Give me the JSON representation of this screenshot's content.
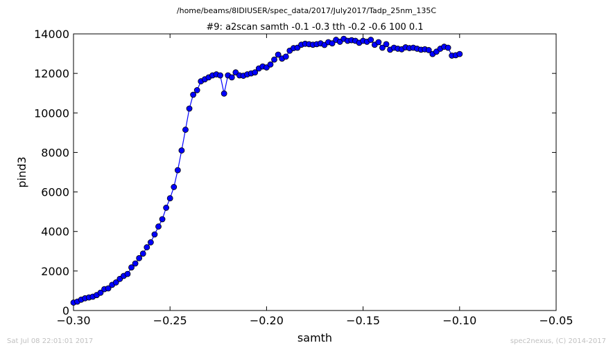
{
  "suptitle": "/home/beams/8IDIUSER/spec_data/2017/July2017/Tadp_25nm_135C",
  "footer": {
    "date": "Sat Jul 08 22:01:01 2017",
    "credit": "spec2nexus, (C) 2014-2017"
  },
  "chart_data": {
    "type": "line",
    "title": "#9: a2scan  samth -0.1 -0.3  tth -0.2 -0.6  100 0.1",
    "xlabel": "samth",
    "ylabel": "pind3",
    "xlim": [
      -0.3,
      -0.05
    ],
    "ylim": [
      0,
      14000
    ],
    "xticks": [
      -0.3,
      -0.25,
      -0.2,
      -0.15,
      -0.1,
      -0.05
    ],
    "xtick_labels": [
      "−0.30",
      "−0.25",
      "−0.20",
      "−0.15",
      "−0.10",
      "−0.05"
    ],
    "yticks": [
      0,
      2000,
      4000,
      6000,
      8000,
      10000,
      12000,
      14000
    ],
    "ytick_labels": [
      "0",
      "2000",
      "4000",
      "6000",
      "8000",
      "10000",
      "12000",
      "14000"
    ],
    "grid": false,
    "series": [
      {
        "color": "#0000ff",
        "marker": "circle",
        "x": [
          -0.3,
          -0.298,
          -0.296,
          -0.294,
          -0.292,
          -0.29,
          -0.288,
          -0.286,
          -0.284,
          -0.282,
          -0.28,
          -0.278,
          -0.276,
          -0.274,
          -0.272,
          -0.27,
          -0.268,
          -0.266,
          -0.264,
          -0.262,
          -0.26,
          -0.258,
          -0.256,
          -0.254,
          -0.252,
          -0.25,
          -0.248,
          -0.246,
          -0.244,
          -0.242,
          -0.24,
          -0.238,
          -0.236,
          -0.234,
          -0.232,
          -0.23,
          -0.228,
          -0.226,
          -0.224,
          -0.222,
          -0.22,
          -0.218,
          -0.216,
          -0.214,
          -0.212,
          -0.21,
          -0.208,
          -0.206,
          -0.204,
          -0.202,
          -0.2,
          -0.198,
          -0.196,
          -0.194,
          -0.192,
          -0.19,
          -0.188,
          -0.186,
          -0.184,
          -0.182,
          -0.18,
          -0.178,
          -0.176,
          -0.174,
          -0.172,
          -0.17,
          -0.168,
          -0.166,
          -0.164,
          -0.162,
          -0.16,
          -0.158,
          -0.156,
          -0.154,
          -0.152,
          -0.15,
          -0.148,
          -0.146,
          -0.144,
          -0.142,
          -0.14,
          -0.138,
          -0.136,
          -0.134,
          -0.132,
          -0.13,
          -0.128,
          -0.126,
          -0.124,
          -0.122,
          -0.12,
          -0.118,
          -0.116,
          -0.114,
          -0.112,
          -0.11,
          -0.108,
          -0.106,
          -0.104,
          -0.102,
          -0.1
        ],
        "y": [
          400,
          450,
          550,
          620,
          660,
          700,
          780,
          900,
          1080,
          1120,
          1300,
          1420,
          1600,
          1750,
          1850,
          2180,
          2380,
          2650,
          2880,
          3200,
          3450,
          3850,
          4250,
          4620,
          5200,
          5680,
          6250,
          7100,
          8100,
          9150,
          10220,
          10920,
          11150,
          11600,
          11700,
          11800,
          11900,
          11950,
          11900,
          10980,
          11900,
          11800,
          12050,
          11900,
          11880,
          11950,
          12000,
          12050,
          12250,
          12350,
          12300,
          12450,
          12700,
          12950,
          12750,
          12850,
          13150,
          13280,
          13300,
          13450,
          13500,
          13480,
          13450,
          13480,
          13520,
          13440,
          13580,
          13520,
          13700,
          13600,
          13750,
          13650,
          13680,
          13650,
          13550,
          13650,
          13600,
          13700,
          13450,
          13580,
          13300,
          13480,
          13200,
          13300,
          13250,
          13220,
          13320,
          13280,
          13300,
          13250,
          13200,
          13220,
          13180,
          12980,
          13100,
          13250,
          13350,
          13300,
          12900,
          12920,
          12980
        ]
      }
    ]
  }
}
